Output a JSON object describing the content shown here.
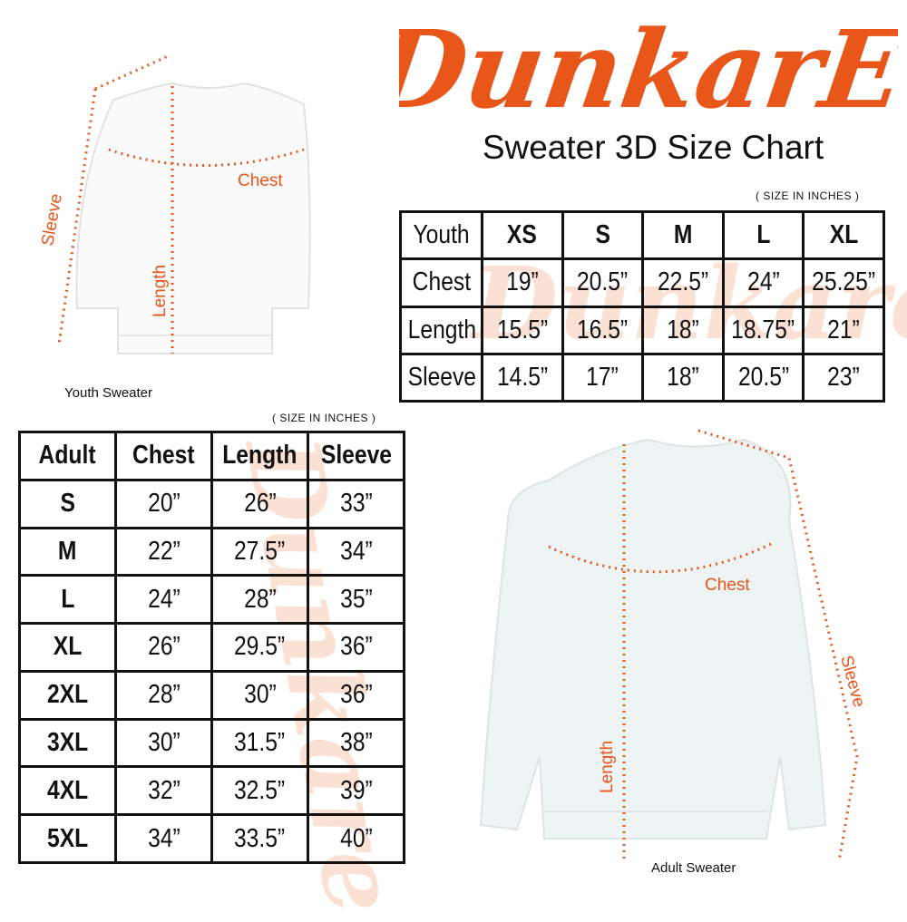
{
  "brand": {
    "logo_text": "DunkarE",
    "color": "#e8561a"
  },
  "title": "Sweater 3D Size Chart",
  "unit_note": "( SIZE IN INCHES )",
  "youth": {
    "caption": "Youth Sweater",
    "diagram_labels": {
      "chest": "Chest",
      "length": "Length",
      "sleeve": "Sleeve"
    },
    "header": [
      "Youth",
      "XS",
      "S",
      "M",
      "L",
      "XL"
    ],
    "rows": [
      [
        "Chest",
        "19”",
        "20.5”",
        "22.5”",
        "24”",
        "25.25”"
      ],
      [
        "Length",
        "15.5”",
        "16.5”",
        "18”",
        "18.75”",
        "21”"
      ],
      [
        "Sleeve",
        "14.5”",
        "17”",
        "18”",
        "20.5”",
        "23”"
      ]
    ]
  },
  "adult": {
    "caption": "Adult Sweater",
    "diagram_labels": {
      "chest": "Chest",
      "length": "Length",
      "sleeve": "Sleeve"
    },
    "header": [
      "Adult",
      "Chest",
      "Length",
      "Sleeve"
    ],
    "rows": [
      [
        "S",
        "20”",
        "26”",
        "33”"
      ],
      [
        "M",
        "22”",
        "27.5”",
        "34”"
      ],
      [
        "L",
        "24”",
        "28”",
        "35”"
      ],
      [
        "XL",
        "26”",
        "29.5”",
        "36”"
      ],
      [
        "2XL",
        "28”",
        "30”",
        "36”"
      ],
      [
        "3XL",
        "30”",
        "31.5”",
        "38”"
      ],
      [
        "4XL",
        "32”",
        "32.5”",
        "39”"
      ],
      [
        "5XL",
        "34”",
        "33.5”",
        "40”"
      ]
    ]
  }
}
